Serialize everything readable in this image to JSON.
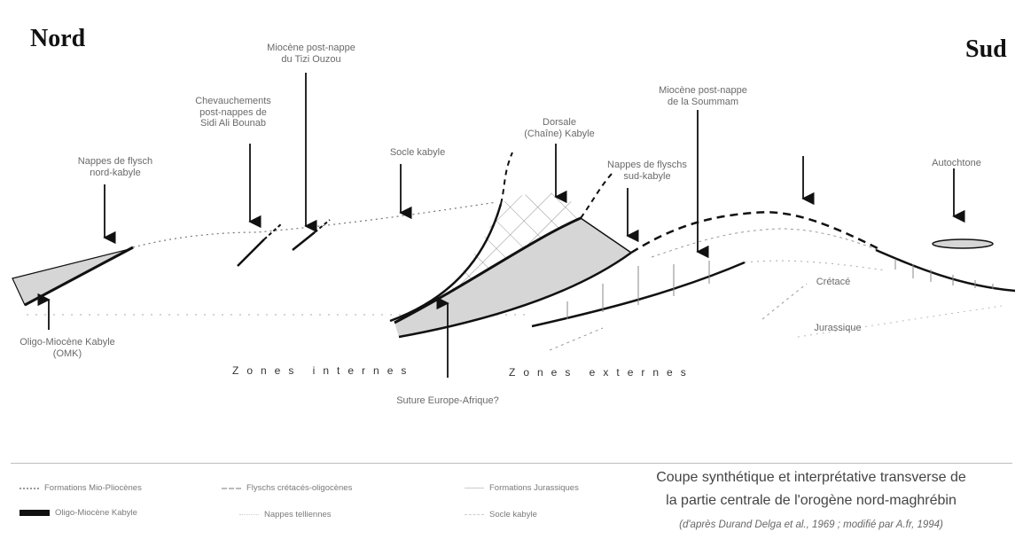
{
  "directions": {
    "north": "Nord",
    "south": "Sud"
  },
  "labels": {
    "miocene_post_nappe_top": "Miocène post-nappe\ndu Tizi Ouzou",
    "chevauchements": "Chevauchements\npost-nappes de\nSidi Ali Bounab",
    "nappes_flysch_nord": "Nappes de flysch\nnord-kabyle",
    "socle_kabyle": "Socle kabyle",
    "dorsale_kabyle": "Dorsale\n(Chaîne) Kabyle",
    "nappes_flysch_sud": "Nappes de flyschs\nsud-kabyle",
    "miocene_post_nappe_soummam": "Miocène post-nappe\nde la Soummam",
    "autochtone": "Autochtone",
    "olig_miocene": "Oligo-Miocène Kabyle\n(OMK)",
    "crétacé": "Crétacé",
    "jurassique": "Jurassique",
    "suture": "Suture Europe-Afrique?"
  },
  "zones": {
    "internes": "Zones internes",
    "externes": "Zones externes"
  },
  "legend": {
    "items": [
      "Formations Mio-Pliocènes",
      "Flyschs crétacés-oligocènes",
      "Formations Jurassiques",
      "Oligo-Miocène Kabyle",
      "Nappes telliennes",
      "Socle kabyle"
    ]
  },
  "caption": {
    "line1": "Coupe synthétique et interprétative transverse de",
    "line2": "la partie centrale de l'orogène nord-maghrébin",
    "ref": "(d'après Durand Delga et al., 1969 ; modifié par A.fr, 1994)"
  },
  "colors": {
    "shade": "#d6d6d6",
    "line": "#1a1a1a",
    "faint": "#9a9a9a"
  }
}
